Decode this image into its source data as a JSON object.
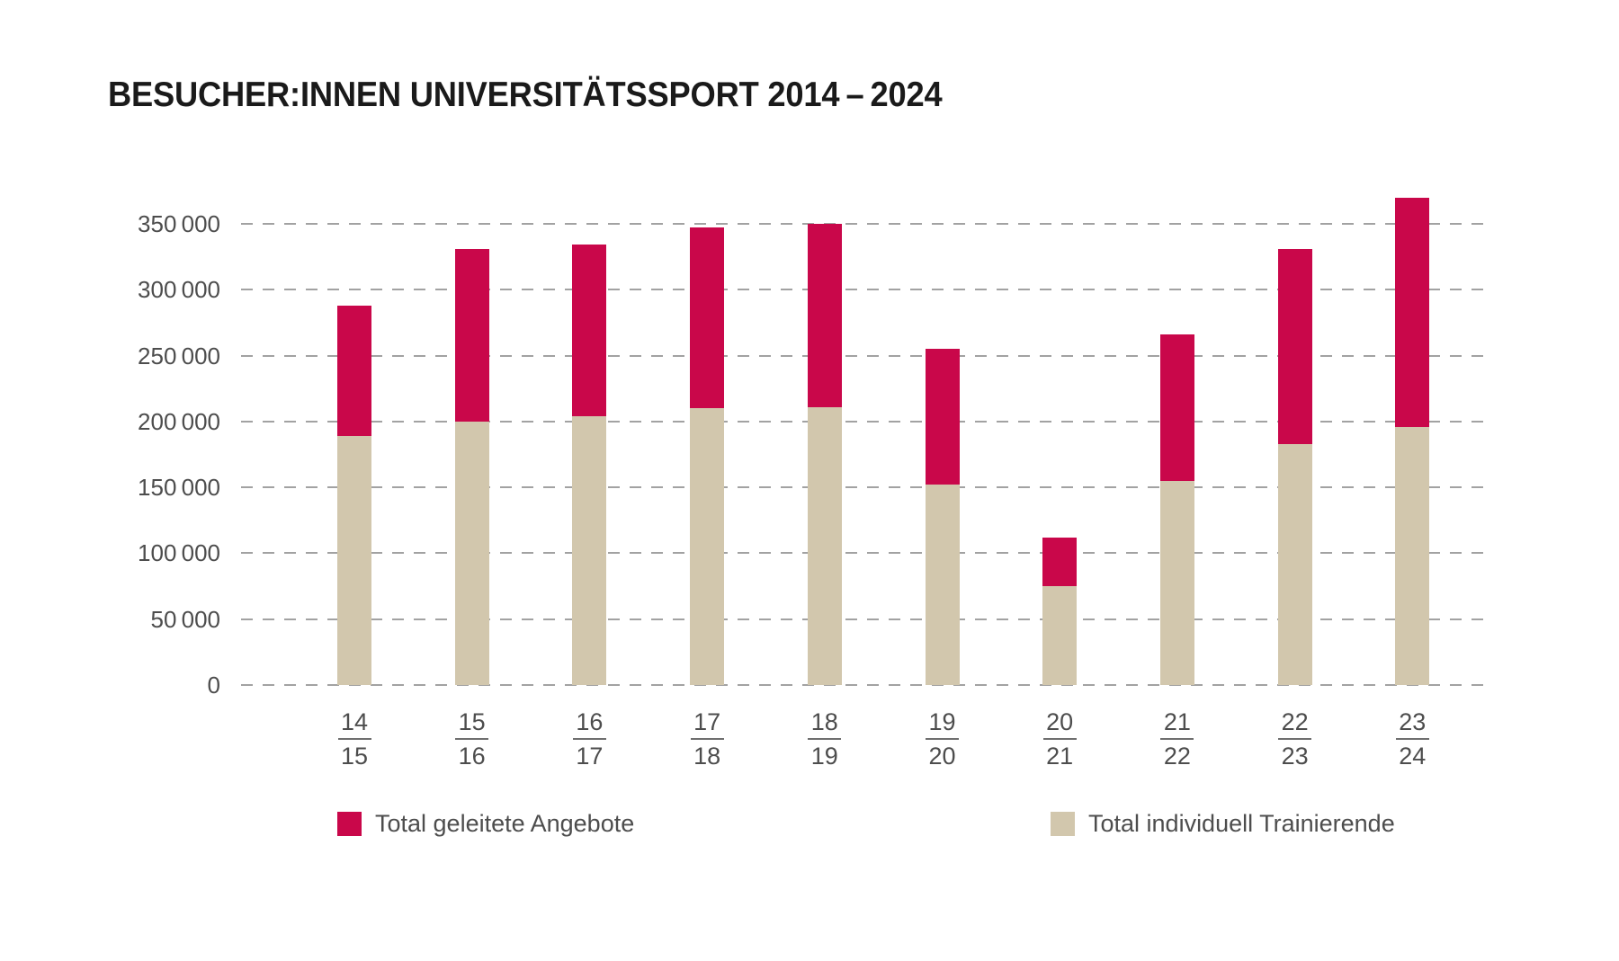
{
  "title": "BESUCHER:INNEN UNIVERSITÄTSSPORT 2014 – 2024",
  "chart_data": {
    "type": "bar",
    "stacked": true,
    "title": "BESUCHER:INNEN UNIVERSITÄTSSPORT 2014 – 2024",
    "categories": [
      "14/15",
      "15/16",
      "16/17",
      "17/18",
      "18/19",
      "19/20",
      "20/21",
      "21/22",
      "22/23",
      "23/24"
    ],
    "series": [
      {
        "name": "Total individuell Trainierende",
        "color": "#D2C7AD",
        "values": [
          189000,
          200000,
          204000,
          210000,
          211000,
          152000,
          75000,
          155000,
          183000,
          196000
        ]
      },
      {
        "name": "Total geleitete Angebote",
        "color": "#C9074A",
        "values": [
          99000,
          131000,
          130000,
          137000,
          139000,
          103000,
          37000,
          111000,
          148000,
          174000
        ]
      }
    ],
    "totals": [
      288000,
      331000,
      334000,
      347000,
      350000,
      255000,
      112000,
      266000,
      331000,
      370000
    ],
    "yticks": [
      {
        "value": 0,
        "label": "0"
      },
      {
        "value": 50000,
        "label": "50 000"
      },
      {
        "value": 100000,
        "label": "100 000"
      },
      {
        "value": 150000,
        "label": "150 000"
      },
      {
        "value": 200000,
        "label": "200 000"
      },
      {
        "value": 250000,
        "label": "250 000"
      },
      {
        "value": 300000,
        "label": "300 000"
      },
      {
        "value": 350000,
        "label": "350 000"
      }
    ],
    "ylim": [
      0,
      385000
    ],
    "xlabel": "",
    "ylabel": "",
    "grid": "horizontal-dashed",
    "legend_position": "bottom"
  },
  "legend": {
    "geleitet_label": "Total geleitete Angebote",
    "individuell_label": "Total individuell Trainierende"
  }
}
